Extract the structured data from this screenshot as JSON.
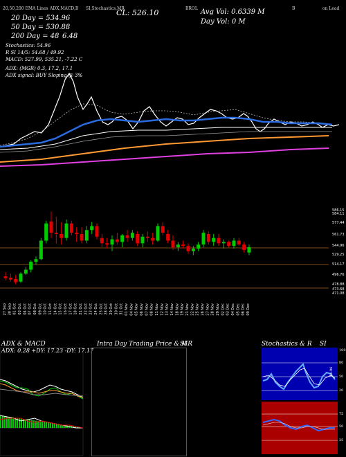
{
  "header": {
    "line1_left": "20,50,200 EMA Lines",
    "line1_mid": "ADX,MACD,B",
    "line1_mid2": "SI,Stochastics,MR",
    "line1_brand": "BROL",
    "line1_right1": "B",
    "line1_right2": "on Lead",
    "cl": "CL: 526.10",
    "avg_vol": "Avg Vol: 0.6339 M",
    "day_vol": "Day Vol: 0   M",
    "ema20": "20 Day = 534.96",
    "ema50": "50 Day = 530.88",
    "ema200": "200 Day = 48",
    "ema200_val": "6.48",
    "stochastics": "Stochastics: 54.96",
    "rsi": "R           SI 14/5: 54.68 / 49.92",
    "macd": "MACD: 527.99, 535.21, -7.22  C",
    "adx": "ADX:                 (MGR) 0.3, 17.2, 17.1",
    "adx_signal": "ADX signal:                  BUY Sloping @ 3%"
  },
  "price_axis": [
    "586.15",
    "584.11",
    "577.44",
    "561.73",
    "544.96",
    "529.25",
    "514.17",
    "496.76",
    "478.88",
    "473.68",
    "471.08"
  ],
  "date_axis": [
    "27 Sep",
    "30 Sep",
    "01 Oct",
    "03 Oct",
    "04 Oct",
    "07 Oct",
    "08 Oct",
    "09 Oct",
    "10 Oct",
    "11 Oct",
    "14 Oct",
    "15 Oct",
    "16 Oct",
    "17 Oct",
    "18 Oct",
    "21 Oct",
    "22 Oct",
    "23 Oct",
    "24 Oct",
    "25 Oct",
    "28 Oct",
    "29 Oct",
    "30 Oct",
    "31 Oct",
    "01 Nov",
    "04 Nov",
    "05 Nov",
    "06 Nov",
    "07 Nov",
    "08 Nov",
    "11 Nov",
    "12 Nov",
    "13 Nov",
    "14 Nov",
    "18 Nov",
    "19 Nov",
    "21 Nov",
    "22 Nov",
    "25 Nov",
    "26 Nov",
    "27 Nov",
    "28 Nov",
    "29 Nov",
    "02 Dec",
    "03 Dec",
    "04 Dec",
    "05 Dec",
    "06 Dec",
    "09 Dec"
  ],
  "panels": {
    "adx_title": "ADX & MACD",
    "adx_values": "ADX: 0.28  +DY: 17.23  -DY: 17.17",
    "intraday_title": "Intra Day Trading Price  & MR",
    "intraday_title2": "SI",
    "stoch_title": "Stochastics & R",
    "stoch_title2": "SI",
    "stoch_axis": [
      "100",
      "80",
      "50",
      "20"
    ],
    "rsi_axis": [
      "75",
      "50",
      "25"
    ],
    "stoch_side_label": "54.96"
  },
  "colors": {
    "up": "#00cc00",
    "down": "#e00000",
    "ema20": "#2a6be0",
    "ema50": "#ffffff",
    "ema200": "#ff9933",
    "magenta": "#e040e0",
    "rsi_bg": "#aa0000",
    "stoch_bg": "#0000b0"
  },
  "chart_data": {
    "type": "candlestick",
    "title": "BROL",
    "ylim": [
      460,
      590
    ],
    "candles": [
      {
        "o": 482,
        "h": 488,
        "l": 476,
        "c": 479
      },
      {
        "o": 480,
        "h": 486,
        "l": 474,
        "c": 477
      },
      {
        "o": 478,
        "h": 484,
        "l": 470,
        "c": 473
      },
      {
        "o": 474,
        "h": 488,
        "l": 472,
        "c": 486
      },
      {
        "o": 486,
        "h": 496,
        "l": 484,
        "c": 492
      },
      {
        "o": 492,
        "h": 506,
        "l": 488,
        "c": 504
      },
      {
        "o": 504,
        "h": 512,
        "l": 500,
        "c": 508
      },
      {
        "o": 508,
        "h": 540,
        "l": 506,
        "c": 536
      },
      {
        "o": 536,
        "h": 566,
        "l": 532,
        "c": 562
      },
      {
        "o": 565,
        "h": 580,
        "l": 540,
        "c": 548
      },
      {
        "o": 548,
        "h": 572,
        "l": 532,
        "c": 546
      },
      {
        "o": 546,
        "h": 564,
        "l": 530,
        "c": 540
      },
      {
        "o": 540,
        "h": 568,
        "l": 536,
        "c": 562
      },
      {
        "o": 562,
        "h": 566,
        "l": 544,
        "c": 548
      },
      {
        "o": 548,
        "h": 556,
        "l": 534,
        "c": 546
      },
      {
        "o": 546,
        "h": 556,
        "l": 532,
        "c": 536
      },
      {
        "o": 536,
        "h": 558,
        "l": 532,
        "c": 552
      },
      {
        "o": 552,
        "h": 564,
        "l": 546,
        "c": 558
      },
      {
        "o": 558,
        "h": 562,
        "l": 538,
        "c": 542
      },
      {
        "o": 540,
        "h": 546,
        "l": 526,
        "c": 532
      },
      {
        "o": 532,
        "h": 540,
        "l": 524,
        "c": 530
      },
      {
        "o": 530,
        "h": 544,
        "l": 520,
        "c": 538
      },
      {
        "o": 538,
        "h": 548,
        "l": 530,
        "c": 534
      },
      {
        "o": 534,
        "h": 546,
        "l": 526,
        "c": 544
      },
      {
        "o": 544,
        "h": 552,
        "l": 534,
        "c": 540
      },
      {
        "o": 540,
        "h": 552,
        "l": 536,
        "c": 548
      },
      {
        "o": 546,
        "h": 550,
        "l": 528,
        "c": 532
      },
      {
        "o": 532,
        "h": 546,
        "l": 526,
        "c": 542
      },
      {
        "o": 542,
        "h": 550,
        "l": 534,
        "c": 540
      },
      {
        "o": 540,
        "h": 548,
        "l": 530,
        "c": 536
      },
      {
        "o": 536,
        "h": 562,
        "l": 534,
        "c": 558
      },
      {
        "o": 558,
        "h": 564,
        "l": 544,
        "c": 548
      },
      {
        "o": 546,
        "h": 552,
        "l": 532,
        "c": 536
      },
      {
        "o": 536,
        "h": 544,
        "l": 522,
        "c": 526
      },
      {
        "o": 526,
        "h": 534,
        "l": 520,
        "c": 530
      },
      {
        "o": 530,
        "h": 536,
        "l": 524,
        "c": 528
      },
      {
        "o": 528,
        "h": 532,
        "l": 516,
        "c": 520
      },
      {
        "o": 520,
        "h": 528,
        "l": 514,
        "c": 524
      },
      {
        "o": 524,
        "h": 534,
        "l": 520,
        "c": 530
      },
      {
        "o": 530,
        "h": 552,
        "l": 526,
        "c": 548
      },
      {
        "o": 546,
        "h": 550,
        "l": 530,
        "c": 534
      },
      {
        "o": 534,
        "h": 546,
        "l": 528,
        "c": 540
      },
      {
        "o": 540,
        "h": 546,
        "l": 528,
        "c": 532
      },
      {
        "o": 532,
        "h": 538,
        "l": 524,
        "c": 534
      },
      {
        "o": 534,
        "h": 536,
        "l": 526,
        "c": 528
      },
      {
        "o": 528,
        "h": 540,
        "l": 524,
        "c": 536
      },
      {
        "o": 536,
        "h": 540,
        "l": 528,
        "c": 530
      },
      {
        "o": 530,
        "h": 534,
        "l": 518,
        "c": 522
      },
      {
        "o": 518,
        "h": 530,
        "l": 514,
        "c": 526
      }
    ]
  }
}
